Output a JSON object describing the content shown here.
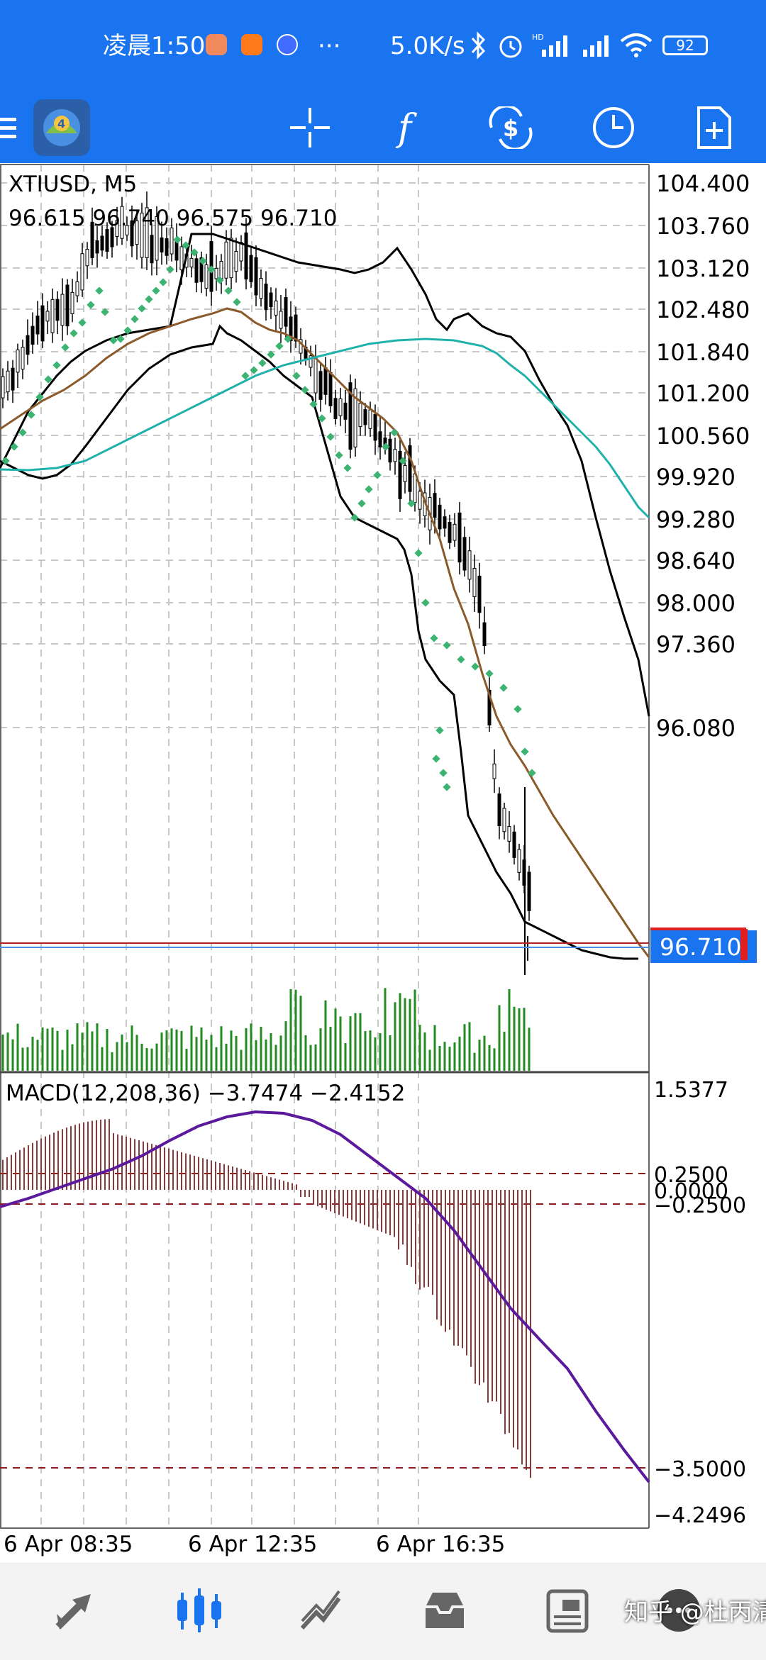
{
  "status_bar": {
    "time": "凌晨1:50",
    "dots": "···",
    "net_speed": "5.0K/s",
    "battery": "92"
  },
  "toolbar": {
    "icons": [
      "menu-icon",
      "mt4-logo",
      "crosshair-icon",
      "indicator-f-icon",
      "trade-dollar-icon",
      "clock-icon",
      "new-document-icon"
    ]
  },
  "chart": {
    "symbol": "XTIUSD, M5",
    "ohlc": "96.615 96.740 96.575 96.710",
    "current_price": "96.710",
    "price_ticks": [
      "104.400",
      "103.760",
      "103.120",
      "102.480",
      "101.840",
      "101.200",
      "100.560",
      "99.920",
      "99.280",
      "98.640",
      "98.000",
      "97.360",
      "96.080"
    ],
    "time_labels": [
      "6 Apr 08:35",
      "6 Apr 12:35",
      "6 Apr 16:35"
    ],
    "macd_label": "MACD(12,208,36) −3.7474 −2.4152",
    "macd_ticks": [
      "1.5377",
      "0.2500",
      "0.0000",
      "−0.2500",
      "−3.5000",
      "−4.2496"
    ]
  },
  "colors": {
    "brand_blue": "#1a74f0",
    "candle": "#000000",
    "bollinger": "#000000",
    "ma_brown": "#8b5a2b",
    "ma_teal": "#20b2aa",
    "psar_green": "#3cb371",
    "volume_green": "#228b22",
    "macd_hist": "#8b3a3a",
    "macd_signal": "#5b1a9c",
    "price_line_red": "#b22222",
    "price_label_bg": "#1a74f0"
  },
  "bottom_nav": {
    "items": [
      "quotes-icon",
      "chart-icon",
      "trade-icon",
      "history-icon",
      "news-icon",
      "messages-icon"
    ],
    "watermark": "知乎 @杜丙清"
  }
}
